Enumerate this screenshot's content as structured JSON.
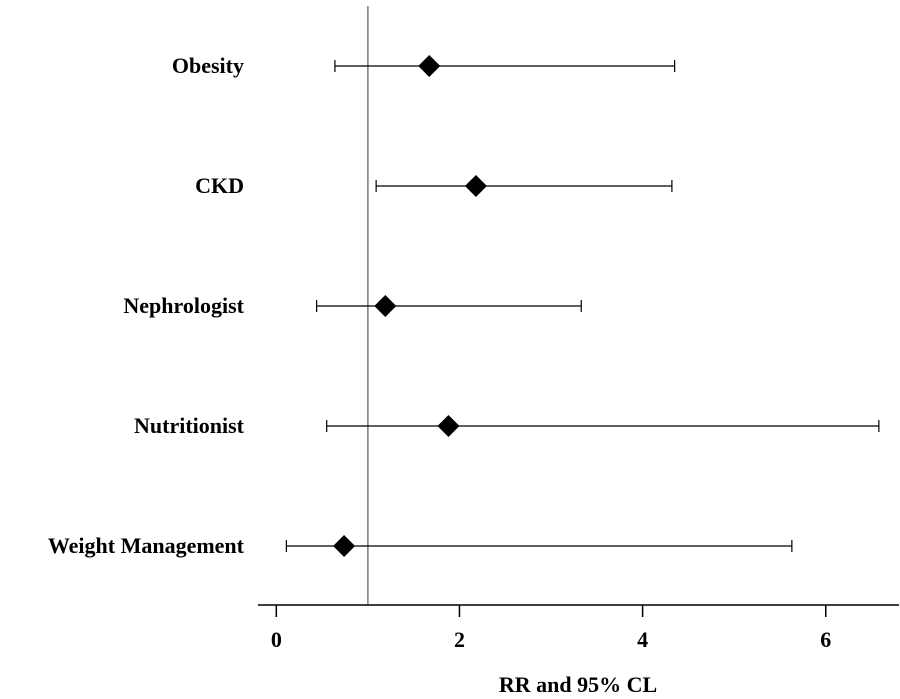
{
  "chart_data": {
    "type": "forest",
    "categories": [
      "Obesity",
      "CKD",
      "Nephrologist",
      "Nutritionist",
      "Weight Management"
    ],
    "series": [
      {
        "points": [
          {
            "label": "Obesity",
            "estimate": 1.67,
            "lower": 0.64,
            "upper": 4.35
          },
          {
            "label": "CKD",
            "estimate": 2.18,
            "lower": 1.09,
            "upper": 4.32
          },
          {
            "label": "Nephrologist",
            "estimate": 1.19,
            "lower": 0.44,
            "upper": 3.33
          },
          {
            "label": "Nutritionist",
            "estimate": 1.88,
            "lower": 0.55,
            "upper": 6.58
          },
          {
            "label": "Weight Management",
            "estimate": 0.74,
            "lower": 0.11,
            "upper": 5.63
          }
        ]
      }
    ],
    "reference_line": 1,
    "xlim": [
      -0.2,
      6.8
    ],
    "xticks": [
      0,
      2,
      4,
      6
    ],
    "xlabel": "RR and 95% CL",
    "ylabel": "",
    "title": "",
    "grid": false,
    "legend": "none",
    "marker": "diamond",
    "colors": {
      "point": "#000000",
      "ci": "#000000",
      "reference": "#7a7a7a",
      "axis": "#000000"
    }
  }
}
